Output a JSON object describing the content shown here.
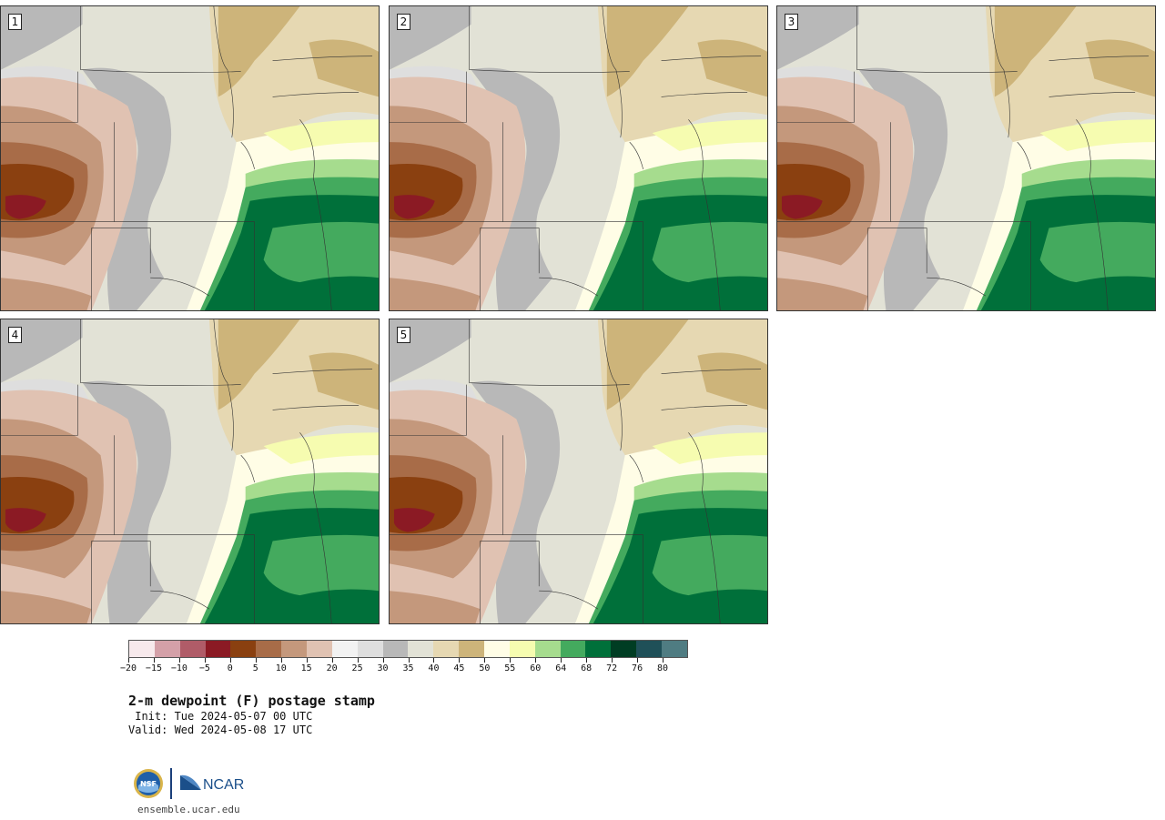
{
  "panels": [
    {
      "number": "1"
    },
    {
      "number": "2"
    },
    {
      "number": "3"
    },
    {
      "number": "4"
    },
    {
      "number": "5"
    }
  ],
  "colorbar": {
    "colors": [
      "#f7e9ec",
      "#d4a0a8",
      "#b05c68",
      "#8b1a24",
      "#8a4010",
      "#a86c48",
      "#c4987c",
      "#e0c2b2",
      "#f2f2f2",
      "#dedede",
      "#b8b8b8",
      "#e2e2d6",
      "#e6d8b2",
      "#cdb47a",
      "#fffde6",
      "#f6fcb0",
      "#a6dc8e",
      "#44aa5e",
      "#00703a",
      "#003d23",
      "#1f5058",
      "#4f7c82"
    ],
    "tick_labels": [
      "−20",
      "−15",
      "−10",
      "−5",
      "0",
      "5",
      "10",
      "15",
      "20",
      "25",
      "30",
      "35",
      "40",
      "45",
      "50",
      "55",
      "60",
      "64",
      "68",
      "72",
      "76",
      "80"
    ]
  },
  "title": "2-m dewpoint (F) postage stamp",
  "init": " Init: Tue 2024-05-07 00 UTC",
  "valid": "Valid: Wed 2024-05-08 17 UTC",
  "logos": {
    "nsf": "NSF",
    "ncar": "NCAR"
  },
  "website": "ensemble.ucar.edu"
}
